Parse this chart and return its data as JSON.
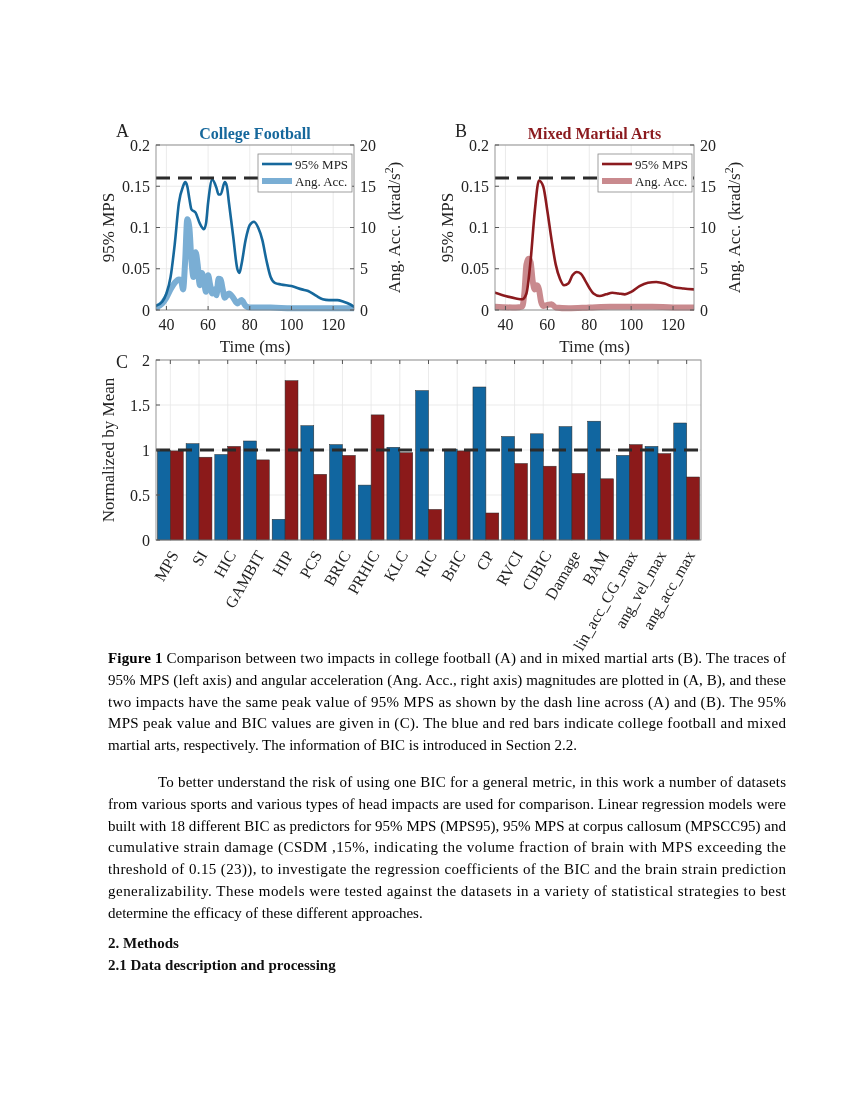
{
  "chart_data": [
    {
      "type": "line",
      "title": "College Football",
      "xlabel": "Time (ms)",
      "ylabel": "95% MPS",
      "y2label": "Ang. Acc. (krad/s$^{2}$)",
      "annotations": [
        "A"
      ],
      "xlim": [
        35,
        130
      ],
      "xticks": [
        40,
        60,
        80,
        100,
        120
      ],
      "ylim": [
        0,
        0.2
      ],
      "yticks": [
        0,
        0.05,
        0.1,
        0.15,
        0.2
      ],
      "y2lim": [
        0,
        20
      ],
      "y2ticks": [
        0,
        5,
        10,
        15,
        20
      ],
      "grid": true,
      "legend": "top right",
      "ref_lines": [
        {
          "axis": "y",
          "value": 0.16,
          "color": "#2b2b2b",
          "line_style": "dashed"
        }
      ],
      "series": [
        {
          "name": "95% MPS",
          "color": "#16689c",
          "x": [
            35,
            38,
            40,
            42,
            44,
            46,
            48,
            49,
            50,
            51,
            52,
            54,
            56,
            58,
            59,
            60,
            62,
            64,
            65,
            66,
            68,
            69,
            70,
            72,
            74,
            75,
            76,
            78,
            80,
            82,
            84,
            86,
            88,
            90,
            92,
            95,
            100,
            105,
            108,
            112,
            115,
            118,
            122,
            125,
            128,
            130
          ],
          "values": [
            0.005,
            0.01,
            0.02,
            0.04,
            0.08,
            0.13,
            0.15,
            0.155,
            0.15,
            0.135,
            0.122,
            0.118,
            0.105,
            0.098,
            0.105,
            0.13,
            0.158,
            0.148,
            0.14,
            0.14,
            0.155,
            0.15,
            0.13,
            0.09,
            0.05,
            0.045,
            0.055,
            0.085,
            0.103,
            0.107,
            0.1,
            0.085,
            0.06,
            0.04,
            0.033,
            0.031,
            0.029,
            0.025,
            0.023,
            0.017,
            0.013,
            0.012,
            0.012,
            0.01,
            0.007,
            0.004
          ]
        },
        {
          "name": "Ang. Acc.",
          "color": "#7aaed4",
          "axis": "y2",
          "x": [
            35,
            38,
            40,
            42,
            44,
            46,
            47,
            48,
            49,
            50,
            51,
            52,
            53,
            54,
            55,
            56,
            57,
            58,
            59,
            60,
            61,
            62,
            63,
            64,
            65,
            66,
            67,
            68,
            70,
            72,
            74,
            76,
            78,
            80,
            85,
            90,
            100,
            110,
            120,
            130
          ],
          "values": [
            0.3,
            0.8,
            1.5,
            2.5,
            3.3,
            3.7,
            3.6,
            2.5,
            6,
            11,
            10,
            6,
            4,
            7,
            5.5,
            3,
            4.5,
            3.5,
            2.2,
            4.2,
            3,
            2,
            2.5,
            1.8,
            3.8,
            3.7,
            2.5,
            1.5,
            2,
            1.5,
            0.8,
            1.2,
            0.5,
            0.3,
            0.3,
            0.3,
            0.2,
            0.2,
            0.2,
            0.2
          ]
        }
      ]
    },
    {
      "type": "line",
      "title": "Mixed Martial Arts",
      "xlabel": "Time (ms)",
      "ylabel": "95% MPS",
      "y2label": "Ang. Acc. (krad/s$^{2}$)",
      "annotations": [
        "B"
      ],
      "xlim": [
        35,
        130
      ],
      "xticks": [
        40,
        60,
        80,
        100,
        120
      ],
      "ylim": [
        0,
        0.2
      ],
      "yticks": [
        0,
        0.05,
        0.1,
        0.15,
        0.2
      ],
      "y2lim": [
        0,
        20
      ],
      "y2ticks": [
        0,
        5,
        10,
        15,
        20
      ],
      "grid": true,
      "legend": "top right",
      "ref_lines": [
        {
          "axis": "y",
          "value": 0.16,
          "color": "#2b2b2b",
          "line_style": "dashed"
        }
      ],
      "series": [
        {
          "name": "95% MPS",
          "color": "#8b1a1e",
          "x": [
            35,
            40,
            45,
            48,
            50,
            52,
            54,
            56,
            58,
            60,
            62,
            64,
            66,
            68,
            70,
            72,
            74,
            76,
            78,
            80,
            82,
            85,
            88,
            91,
            94,
            97,
            100,
            104,
            108,
            112,
            116,
            120,
            125,
            130
          ],
          "values": [
            0.021,
            0.017,
            0.014,
            0.013,
            0.02,
            0.06,
            0.12,
            0.157,
            0.15,
            0.12,
            0.085,
            0.055,
            0.038,
            0.03,
            0.032,
            0.042,
            0.046,
            0.044,
            0.036,
            0.027,
            0.02,
            0.017,
            0.019,
            0.021,
            0.02,
            0.019,
            0.022,
            0.029,
            0.033,
            0.034,
            0.032,
            0.028,
            0.026,
            0.025
          ]
        },
        {
          "name": "Ang. Acc.",
          "color": "#c98a8e",
          "axis": "y2",
          "x": [
            35,
            45,
            48,
            49,
            50,
            51,
            52,
            53,
            54,
            55,
            56,
            57,
            58,
            60,
            62,
            64,
            70,
            80,
            90,
            100,
            110,
            120,
            130
          ],
          "values": [
            0.4,
            0.3,
            0.4,
            2,
            5.5,
            6.2,
            5.8,
            3.5,
            2.5,
            3,
            2.5,
            1,
            0.5,
            0.6,
            0.7,
            0.3,
            0.2,
            0.3,
            0.4,
            0.4,
            0.4,
            0.3,
            0.3
          ]
        }
      ]
    },
    {
      "type": "bar",
      "ylabel": "Normalized by Mean",
      "ylim": [
        0,
        2
      ],
      "yticks": [
        0,
        0.5,
        1,
        1.5,
        2
      ],
      "grid": true,
      "categories": [
        "MPS",
        "SI",
        "HIC",
        "GAMBIT",
        "HIP",
        "PCS",
        "BRIC",
        "PRHIC",
        "KLC",
        "RIC",
        "BrIC",
        "CP",
        "RVCI",
        "CIBIC",
        "Damage",
        "BAM",
        "lin_acc_CG_max",
        "ang_vel_max",
        "ang_acc_max"
      ],
      "ref_lines": [
        {
          "axis": "y",
          "value": 1,
          "color": "#2b2b2b",
          "line_style": "dashed"
        }
      ],
      "series": [
        {
          "color": "#1166a0",
          "values": [
            1.0,
            1.07,
            0.95,
            1.1,
            0.23,
            1.27,
            1.06,
            0.61,
            1.03,
            1.66,
            1.01,
            1.7,
            1.15,
            1.18,
            1.26,
            1.32,
            0.94,
            1.04,
            1.3
          ]
        },
        {
          "color": "#8b1a1a",
          "values": [
            0.99,
            0.92,
            1.04,
            0.89,
            1.77,
            0.73,
            0.94,
            1.39,
            0.97,
            0.34,
            0.99,
            0.3,
            0.85,
            0.82,
            0.74,
            0.68,
            1.06,
            0.96,
            0.7
          ]
        }
      ],
      "annotations": [
        "C",
        "Figure 1 Comparison between two impacts in college football (A) and in mixed martial arts (B). The traces of 95% MPS (left axis) and angular acceleration (Ang. Acc., right axis) magnitudes are plotted in (A, B), and these two impacts have the same peak value of 95% MPS as shown by the dash line across (A) and (B). The 95% MPS peak value and BIC values are given in (C). The blue and red bars indicate college football and mixed martial arts, respectively. The information of BIC is introduced in Section 2.2.",
        "To better understand the risk of using one BIC for a general metric, in this work a number of datasets from various sports and various types of head impacts are used for comparison. Linear regression models were built with 18 different BIC as predictors for 95% MPS (MPS95), 95% MPS at corpus callosum (MPSCC95) and cumulative strain damage (CSDM ,15%, indicating the volume fraction of brain with MPS exceeding the threshold of 0.15 (23)), to investigate the regression coefficients of the BIC and the brain strain prediction generalizability. These models were tested against the datasets in a variety of statistical strategies to best determine the efficacy of these different approaches.",
        "2. Methods",
        "2.1 Data description and processing"
      ]
    }
  ]
}
